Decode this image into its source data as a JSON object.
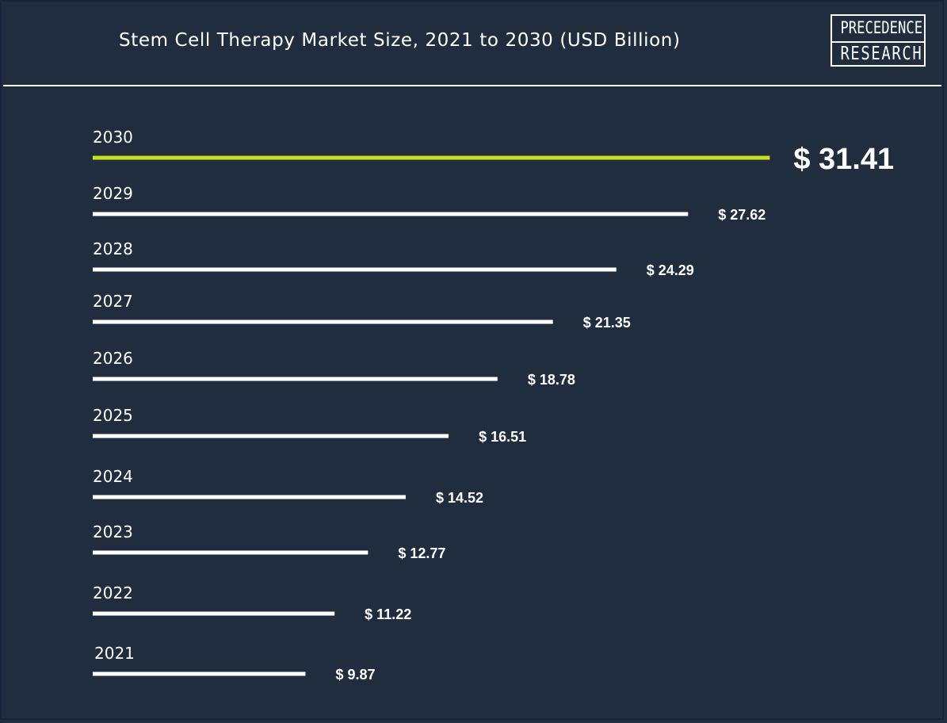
{
  "header": {
    "title": "Stem Cell Therapy Market Size, 2021 to 2030 (USD Billion)",
    "logo_line1": "PRECEDENCE",
    "logo_line2": "RESEARCH"
  },
  "colors": {
    "background": "#1f2d3f",
    "bar": "#ffffff",
    "highlight_bar": "#c8e11e",
    "text": "#ffffff"
  },
  "chart_data": {
    "type": "bar",
    "orientation": "horizontal",
    "title": "Stem Cell Therapy Market Size, 2021 to 2030 (USD Billion)",
    "categories": [
      "2030",
      "2029",
      "2028",
      "2027",
      "2026",
      "2025",
      "2024",
      "2023",
      "2022",
      "2021"
    ],
    "values": [
      31.41,
      27.62,
      24.29,
      21.35,
      18.78,
      16.51,
      14.52,
      12.77,
      11.22,
      9.87
    ],
    "value_labels": [
      "$ 31.41",
      "$ 27.62",
      "$ 24.29",
      "$ 21.35",
      "$ 18.78",
      "$ 16.51",
      "$ 14.52",
      "$ 12.77",
      "$ 11.22",
      "$ 9.87"
    ],
    "highlight_category": "2030",
    "xlabel": "",
    "ylabel": "",
    "grid": false,
    "legend": "none"
  }
}
